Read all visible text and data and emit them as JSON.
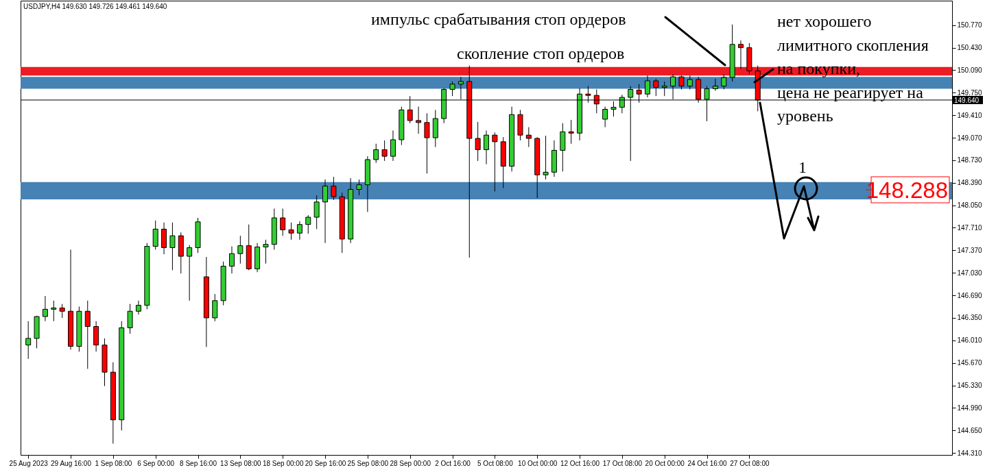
{
  "chart_data": {
    "type": "candlestick",
    "title": "USDJPY,H4  149.630 149.726 149.461 149.640",
    "categories": [
      "25 Aug 2023",
      null,
      null,
      null,
      null,
      "29 Aug 16:00",
      null,
      null,
      null,
      null,
      "1 Sep 08:00",
      null,
      null,
      null,
      null,
      "6 Sep 00:00",
      null,
      null,
      null,
      null,
      "8 Sep 16:00",
      null,
      null,
      null,
      null,
      "13 Sep 08:00",
      null,
      null,
      null,
      null,
      "18 Sep 00:00",
      null,
      null,
      null,
      null,
      "20 Sep 16:00",
      null,
      null,
      null,
      null,
      "25 Sep 08:00",
      null,
      null,
      null,
      null,
      "28 Sep 00:00",
      null,
      null,
      null,
      null,
      "2 Oct 16:00",
      null,
      null,
      null,
      null,
      "5 Oct 08:00",
      null,
      null,
      null,
      null,
      "10 Oct 00:00",
      null,
      null,
      null,
      null,
      "12 Oct 16:00",
      null,
      null,
      null,
      null,
      "17 Oct 08:00",
      null,
      null,
      null,
      null,
      "20 Oct 00:00",
      null,
      null,
      null,
      null,
      "24 Oct 16:00",
      null,
      null,
      null,
      null,
      "27 Oct 08:00",
      null,
      null,
      null,
      null,
      null,
      null,
      null,
      null,
      null,
      null,
      null,
      null,
      null,
      null,
      null,
      null,
      null,
      null,
      null,
      null,
      null,
      null,
      null
    ],
    "ohlc": [
      [
        145.94,
        146.3,
        145.73,
        146.04
      ],
      [
        146.04,
        146.38,
        145.89,
        146.37
      ],
      [
        146.37,
        146.68,
        146.3,
        146.48
      ],
      [
        146.48,
        146.61,
        146.3,
        146.5
      ],
      [
        146.5,
        146.56,
        146.35,
        146.45
      ],
      [
        146.45,
        147.38,
        145.87,
        145.92
      ],
      [
        145.92,
        146.52,
        145.84,
        146.45
      ],
      [
        146.45,
        146.61,
        145.58,
        146.22
      ],
      [
        146.22,
        146.3,
        145.84,
        145.94
      ],
      [
        145.94,
        146.04,
        145.32,
        145.53
      ],
      [
        145.53,
        145.68,
        144.45,
        144.81
      ],
      [
        144.81,
        146.3,
        144.65,
        146.2
      ],
      [
        146.2,
        146.56,
        146.11,
        146.45
      ],
      [
        146.45,
        146.61,
        146.4,
        146.54
      ],
      [
        146.54,
        147.48,
        146.48,
        147.43
      ],
      [
        147.43,
        147.82,
        147.38,
        147.69
      ],
      [
        147.69,
        147.79,
        147.31,
        147.41
      ],
      [
        147.41,
        147.79,
        147.07,
        147.59
      ],
      [
        147.59,
        147.64,
        147.02,
        147.28
      ],
      [
        147.28,
        147.45,
        146.61,
        147.41
      ],
      [
        147.41,
        147.86,
        147.33,
        147.8
      ],
      [
        146.97,
        147.27,
        145.91,
        146.35
      ],
      [
        146.35,
        146.71,
        146.3,
        146.61
      ],
      [
        146.61,
        147.2,
        146.54,
        147.13
      ],
      [
        147.13,
        147.43,
        147.02,
        147.32
      ],
      [
        147.32,
        147.59,
        147.17,
        147.44
      ],
      [
        147.44,
        147.76,
        147.07,
        147.09
      ],
      [
        147.09,
        147.48,
        147.04,
        147.42
      ],
      [
        147.42,
        147.53,
        147.17,
        147.46
      ],
      [
        147.46,
        148.0,
        147.38,
        147.86
      ],
      [
        147.86,
        148.0,
        147.59,
        147.68
      ],
      [
        147.68,
        147.79,
        147.53,
        147.63
      ],
      [
        147.63,
        147.81,
        147.53,
        147.76
      ],
      [
        147.76,
        147.9,
        147.62,
        147.87
      ],
      [
        147.87,
        148.2,
        147.69,
        148.1
      ],
      [
        148.1,
        148.44,
        147.48,
        148.34
      ],
      [
        148.34,
        148.48,
        148.13,
        148.18
      ],
      [
        148.18,
        148.24,
        147.33,
        147.54
      ],
      [
        147.54,
        148.46,
        147.48,
        148.29
      ],
      [
        148.29,
        148.44,
        148.2,
        148.36
      ],
      [
        148.36,
        148.79,
        147.95,
        148.74
      ],
      [
        148.74,
        148.98,
        148.69,
        148.89
      ],
      [
        148.89,
        149.03,
        148.72,
        148.79
      ],
      [
        148.79,
        149.18,
        148.72,
        149.04
      ],
      [
        149.04,
        149.54,
        148.96,
        149.49
      ],
      [
        149.49,
        149.7,
        149.29,
        149.33
      ],
      [
        149.33,
        149.54,
        149.13,
        149.3
      ],
      [
        149.3,
        149.44,
        148.53,
        149.07
      ],
      [
        149.07,
        149.49,
        148.93,
        149.36
      ],
      [
        149.36,
        149.82,
        149.29,
        149.8
      ],
      [
        149.8,
        149.92,
        149.7,
        149.88
      ],
      [
        149.88,
        149.99,
        149.65,
        149.92
      ],
      [
        149.92,
        150.16,
        147.26,
        149.06
      ],
      [
        149.06,
        149.31,
        148.72,
        148.89
      ],
      [
        148.89,
        149.18,
        148.67,
        149.11
      ],
      [
        149.11,
        149.15,
        148.26,
        149.01
      ],
      [
        149.01,
        149.08,
        148.31,
        148.64
      ],
      [
        148.64,
        149.54,
        148.56,
        149.42
      ],
      [
        149.42,
        149.49,
        149.03,
        149.11
      ],
      [
        149.11,
        149.23,
        148.93,
        149.06
      ],
      [
        149.06,
        149.08,
        148.16,
        148.51
      ],
      [
        148.51,
        149.1,
        148.44,
        148.55
      ],
      [
        148.55,
        149.03,
        148.48,
        148.88
      ],
      [
        148.88,
        149.29,
        148.56,
        149.16
      ],
      [
        149.16,
        149.34,
        148.98,
        149.14
      ],
      [
        149.14,
        149.82,
        149.03,
        149.73
      ],
      [
        149.73,
        149.85,
        149.6,
        149.71
      ],
      [
        149.71,
        149.8,
        149.44,
        149.58
      ],
      [
        149.35,
        149.54,
        149.23,
        149.5
      ],
      [
        149.5,
        149.62,
        149.39,
        149.53
      ],
      [
        149.53,
        149.72,
        149.44,
        149.68
      ],
      [
        149.68,
        149.85,
        148.72,
        149.8
      ],
      [
        149.79,
        149.88,
        149.6,
        149.73
      ],
      [
        149.73,
        150.01,
        149.68,
        149.93
      ],
      [
        149.93,
        149.96,
        149.7,
        149.83
      ],
      [
        149.83,
        149.92,
        149.7,
        149.85
      ],
      [
        149.85,
        150.03,
        149.65,
        149.99
      ],
      [
        149.99,
        150.01,
        149.8,
        149.85
      ],
      [
        149.85,
        150.01,
        149.8,
        149.95
      ],
      [
        149.95,
        149.99,
        149.6,
        149.65
      ],
      [
        149.65,
        149.85,
        149.32,
        149.81
      ],
      [
        149.81,
        149.96,
        149.78,
        149.85
      ],
      [
        149.85,
        150.03,
        149.8,
        149.98
      ],
      [
        149.98,
        150.78,
        149.92,
        150.48
      ],
      [
        150.48,
        150.54,
        150.11,
        150.43
      ],
      [
        150.43,
        150.5,
        150.03,
        150.08
      ],
      [
        150.08,
        150.16,
        149.47,
        149.64
      ],
      null,
      null,
      null,
      null,
      null,
      null,
      null,
      null,
      null,
      null,
      null,
      null,
      null,
      null,
      null,
      null,
      null,
      null,
      null,
      null,
      null,
      null
    ],
    "ylim": [
      144.28,
      151.14
    ],
    "yticks": [
      {
        "value": 150.77,
        "label": "150.770"
      },
      {
        "value": 150.43,
        "label": "150.430"
      },
      {
        "value": 150.09,
        "label": "150.090"
      },
      {
        "value": 149.75,
        "label": "149.750"
      },
      {
        "value": 149.41,
        "label": "149.410"
      },
      {
        "value": 149.07,
        "label": "149.070"
      },
      {
        "value": 148.73,
        "label": "148.730"
      },
      {
        "value": 148.39,
        "label": "148.390"
      },
      {
        "value": 148.05,
        "label": "148.050"
      },
      {
        "value": 147.71,
        "label": "147.710"
      },
      {
        "value": 147.37,
        "label": "147.370"
      },
      {
        "value": 147.03,
        "label": "147.030"
      },
      {
        "value": 146.69,
        "label": "146.690"
      },
      {
        "value": 146.35,
        "label": "146.350"
      },
      {
        "value": 146.01,
        "label": "146.010"
      },
      {
        "value": 145.67,
        "label": "145.670"
      },
      {
        "value": 145.33,
        "label": "145.330"
      },
      {
        "value": 144.99,
        "label": "144.990"
      },
      {
        "value": 144.65,
        "label": "144.650"
      },
      {
        "value": 144.31,
        "label": "144.310"
      }
    ],
    "ref_lines": [
      {
        "axis": "y",
        "value": 149.64,
        "label": "149.640",
        "color": "#000000"
      }
    ],
    "bands": [
      {
        "axis": "y",
        "from": 149.81,
        "to": 149.99,
        "color": "#4682b4"
      },
      {
        "axis": "y",
        "from": 148.14,
        "to": 148.4,
        "color": "#4682b4"
      },
      {
        "axis": "y",
        "from": 150.01,
        "to": 150.14,
        "color": "#ed1c24"
      }
    ],
    "annotations": [
      "импульс срабатывания стоп ордеров",
      "скопление стоп ордеров",
      "нет хорошего\nлимитного скопления\nна покупки,\nцена не реагирует на\nуровень",
      "1",
      "148.288"
    ]
  }
}
